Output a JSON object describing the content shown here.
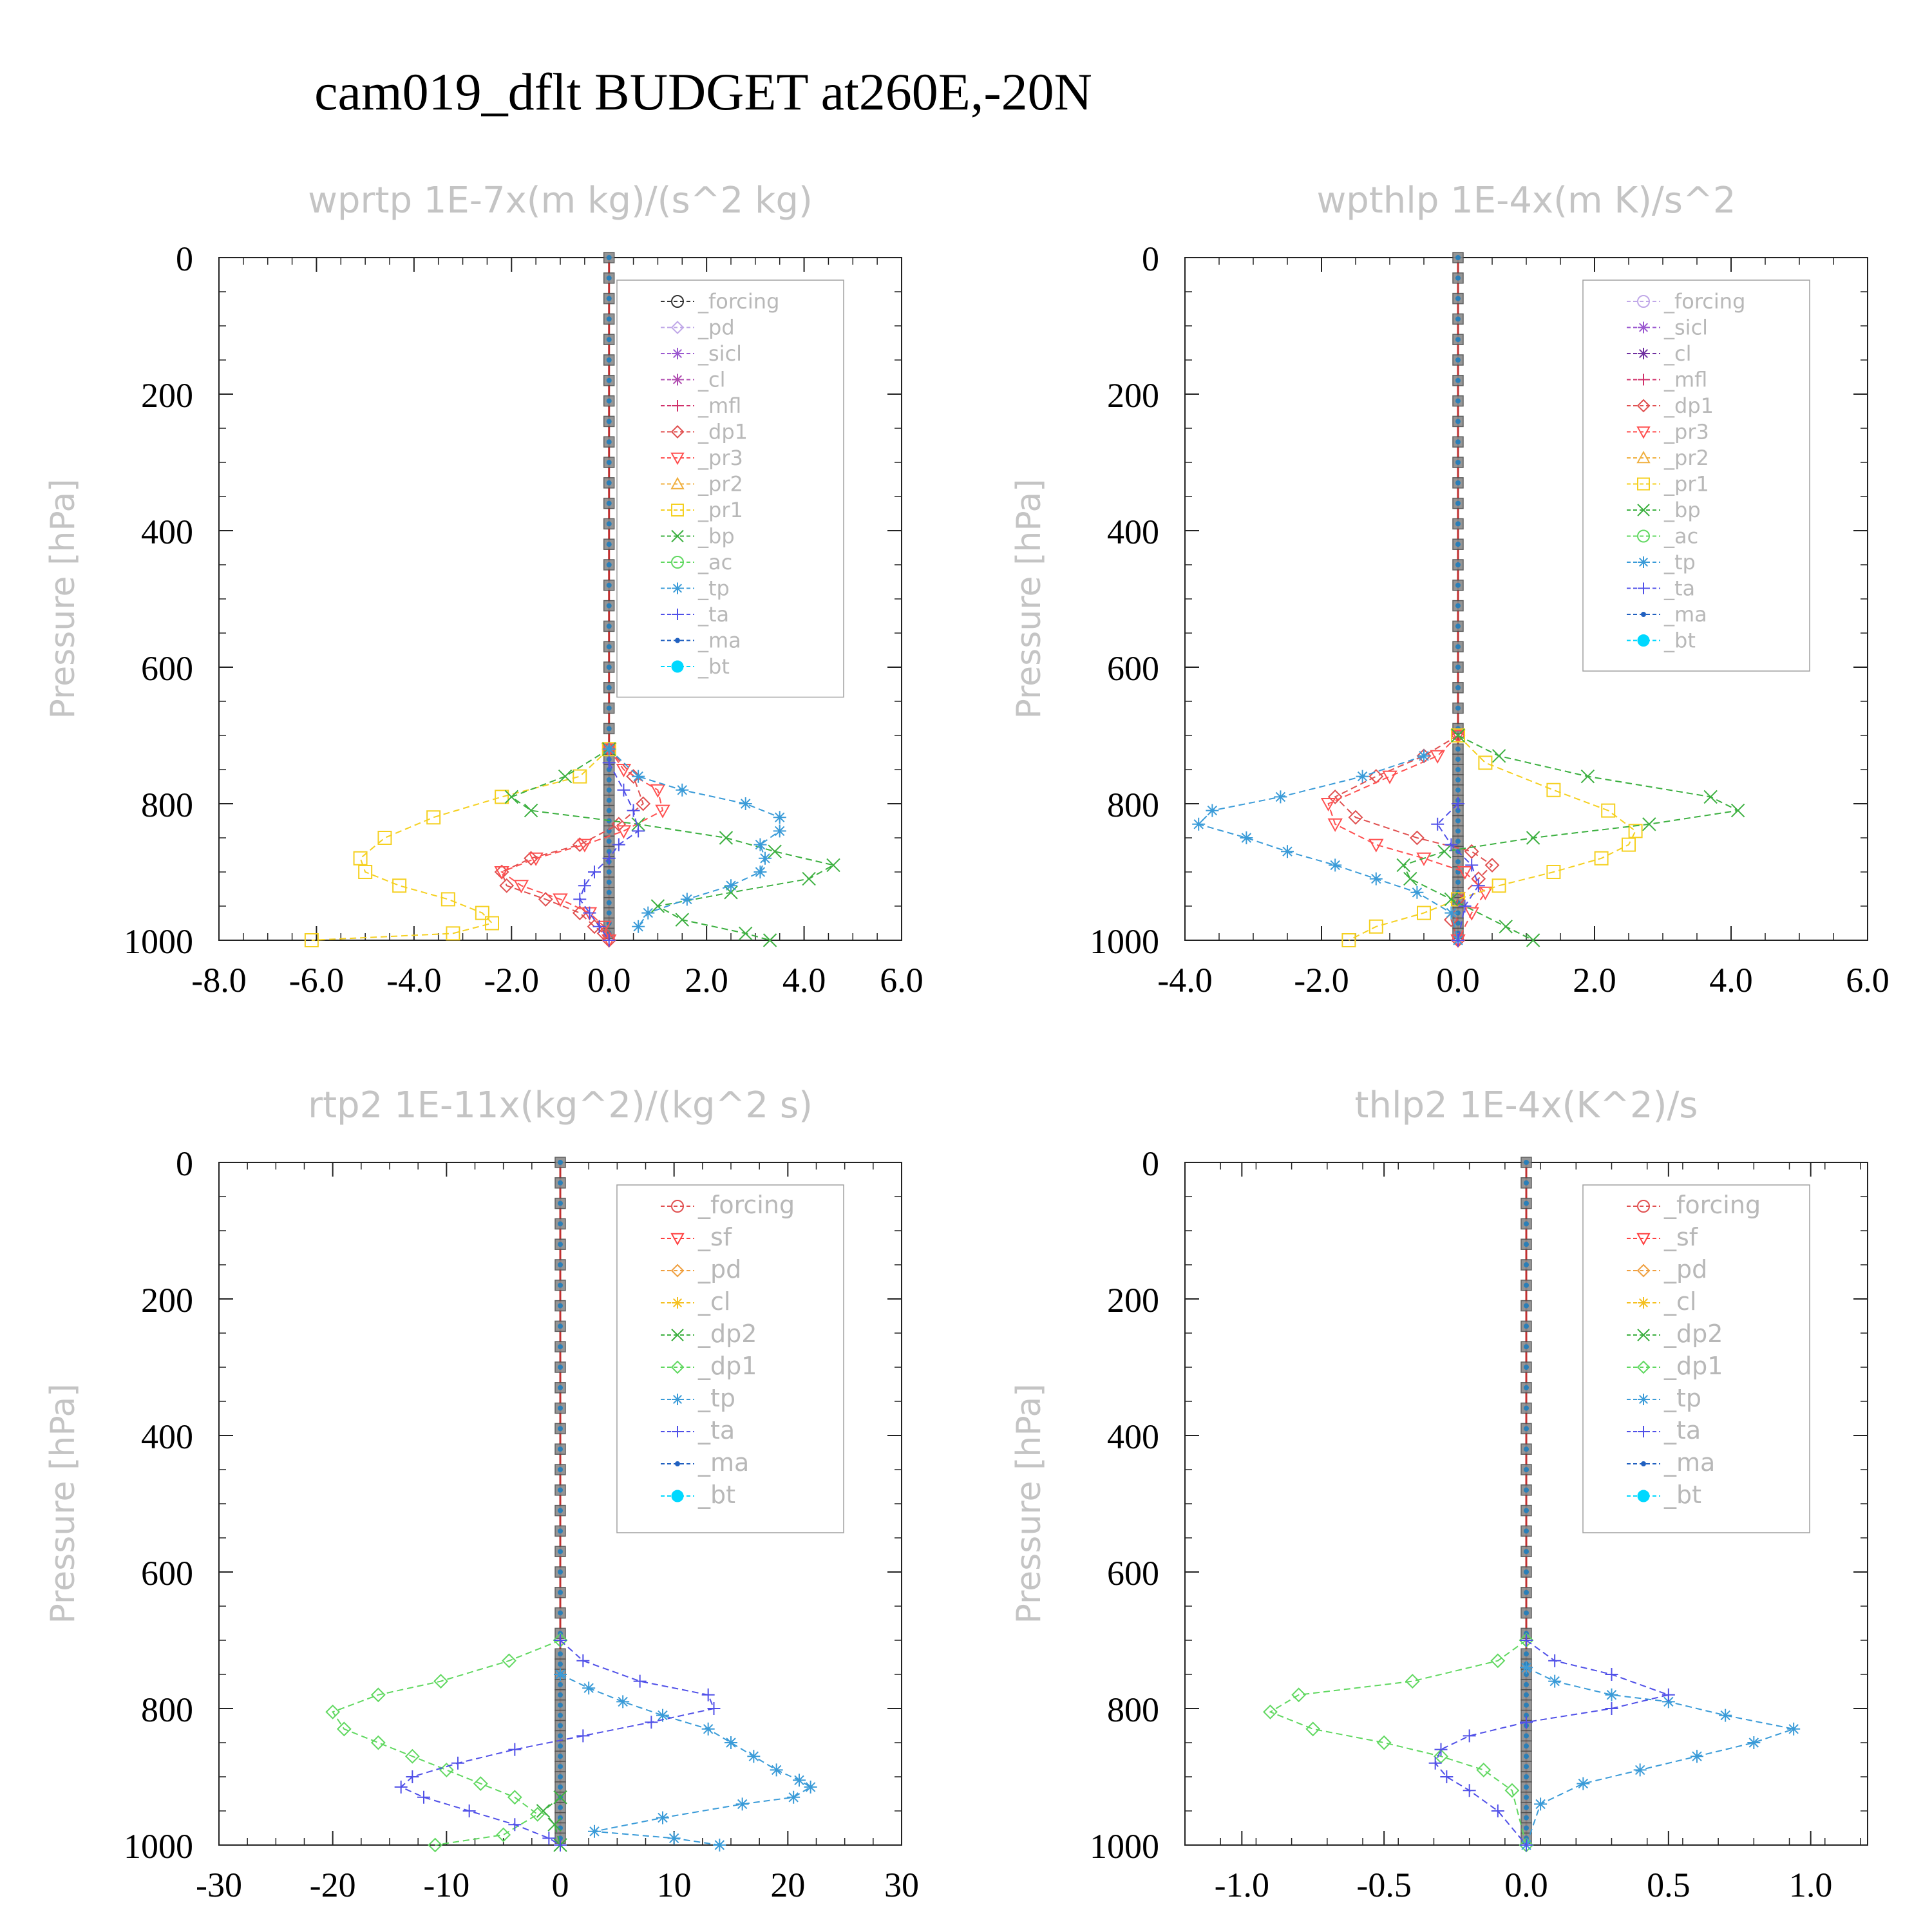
{
  "title": "cam019_dflt  BUDGET at260E,-20N",
  "chart_data": [
    {
      "type": "line",
      "title": "wprtp   1E-7x(m kg)/(s^2 kg)",
      "ylabel": "Pressure  [hPa]",
      "xlim": [
        -8,
        6
      ],
      "ylim": [
        1000,
        0
      ],
      "xticks": [
        "-8.0",
        "-6.0",
        "-4.0",
        "-2.0",
        "0.0",
        "2.0",
        "4.0",
        "6.0"
      ],
      "yticks": [
        "0",
        "200",
        "400",
        "600",
        "800",
        "1000"
      ],
      "legend": "upper-right",
      "series": [
        {
          "name": "_forcing",
          "color": "#333333",
          "values": []
        },
        {
          "name": "_pd",
          "color": "#c0a8e8",
          "values": []
        },
        {
          "name": "_sicl",
          "color": "#9b59d0",
          "values": []
        },
        {
          "name": "_cl",
          "color": "#b04cb0",
          "values": []
        },
        {
          "name": "_mfl",
          "color": "#d0306a",
          "values": []
        },
        {
          "name": "_dp1",
          "color": "#e05050",
          "x": [
            0,
            0.5,
            0.7,
            0.2,
            -0.6,
            -1.6,
            -2.2,
            -2.1,
            -1.3,
            -0.6,
            -0.3,
            -0.1,
            0
          ],
          "y": [
            720,
            760,
            800,
            830,
            860,
            880,
            900,
            920,
            940,
            960,
            980,
            990,
            1000
          ]
        },
        {
          "name": "_pr3",
          "color": "#ff5050",
          "x": [
            0,
            0.3,
            1.0,
            1.1,
            0.3,
            -0.5,
            -1.5,
            -2.2,
            -1.8,
            -1.0,
            -0.4,
            -0.1,
            0
          ],
          "y": [
            720,
            750,
            780,
            810,
            840,
            860,
            880,
            900,
            920,
            940,
            960,
            980,
            1000
          ]
        },
        {
          "name": "_pr2",
          "color": "#f0b040",
          "values": []
        },
        {
          "name": "_pr1",
          "color": "#f5d020",
          "x": [
            0,
            -0.6,
            -2.2,
            -3.6,
            -4.6,
            -5.1,
            -5.0,
            -4.3,
            -3.3,
            -2.6,
            -2.4,
            -3.2,
            -6.1
          ],
          "y": [
            720,
            760,
            790,
            820,
            850,
            880,
            900,
            920,
            940,
            960,
            975,
            990,
            1000
          ]
        },
        {
          "name": "_bp",
          "color": "#3cb040",
          "x": [
            0,
            -0.9,
            -2.0,
            -1.6,
            0.6,
            2.4,
            3.4,
            4.6,
            4.1,
            2.5,
            1.0,
            1.5,
            2.8,
            3.3
          ],
          "y": [
            720,
            760,
            790,
            810,
            830,
            850,
            870,
            890,
            910,
            930,
            950,
            970,
            990,
            1000
          ]
        },
        {
          "name": "_ac",
          "color": "#60d860",
          "values": []
        },
        {
          "name": "_tp",
          "color": "#3a9bd8",
          "x": [
            0,
            0.6,
            1.5,
            2.8,
            3.5,
            3.5,
            3.1,
            3.2,
            3.1,
            2.5,
            1.6,
            0.8,
            0.6
          ],
          "y": [
            720,
            760,
            780,
            800,
            820,
            840,
            860,
            880,
            900,
            920,
            940,
            960,
            980
          ]
        },
        {
          "name": "_ta",
          "color": "#5050e8",
          "x": [
            0,
            0.3,
            0.5,
            0.6,
            0.2,
            0,
            -0.3,
            -0.5,
            -0.6,
            -0.4,
            -0.2,
            0
          ],
          "y": [
            740,
            780,
            810,
            840,
            860,
            880,
            900,
            920,
            940,
            960,
            980,
            1000
          ]
        },
        {
          "name": "_ma",
          "color": "#2060c0",
          "values": []
        },
        {
          "name": "_bt",
          "color": "#00d8ff",
          "values": []
        }
      ]
    },
    {
      "type": "line",
      "title": "wpthlp   1E-4x(m K)/s^2",
      "ylabel": "Pressure  [hPa]",
      "xlim": [
        -4,
        6
      ],
      "ylim": [
        1000,
        0
      ],
      "xticks": [
        "-4.0",
        "-2.0",
        "0.0",
        "2.0",
        "4.0",
        "6.0"
      ],
      "yticks": [
        "0",
        "200",
        "400",
        "600",
        "800",
        "1000"
      ],
      "legend": "upper-right",
      "series": [
        {
          "name": "_forcing",
          "color": "#c0a8e8",
          "values": []
        },
        {
          "name": "_sicl",
          "color": "#9b59d0",
          "values": []
        },
        {
          "name": "_cl",
          "color": "#7030a0",
          "values": []
        },
        {
          "name": "_mfl",
          "color": "#d0306a",
          "values": []
        },
        {
          "name": "_dp1",
          "color": "#e05050",
          "x": [
            0,
            -0.5,
            -1.2,
            -1.8,
            -1.5,
            -0.6,
            0.2,
            0.5,
            0.3,
            0,
            -0.1,
            0
          ],
          "y": [
            700,
            730,
            760,
            790,
            820,
            850,
            870,
            890,
            910,
            940,
            970,
            1000
          ]
        },
        {
          "name": "_pr3",
          "color": "#ff5050",
          "x": [
            0,
            -0.3,
            -1.0,
            -1.9,
            -1.8,
            -1.2,
            -0.5,
            0.1,
            0.4,
            0.2,
            0
          ],
          "y": [
            700,
            730,
            760,
            800,
            830,
            860,
            880,
            900,
            930,
            960,
            1000
          ]
        },
        {
          "name": "_pr2",
          "color": "#f0b040",
          "values": []
        },
        {
          "name": "_pr1",
          "color": "#f5d020",
          "x": [
            0,
            0.4,
            1.4,
            2.2,
            2.6,
            2.5,
            2.1,
            1.4,
            0.6,
            0,
            -0.5,
            -1.2,
            -1.6
          ],
          "y": [
            700,
            740,
            780,
            810,
            840,
            860,
            880,
            900,
            920,
            940,
            960,
            980,
            1000
          ]
        },
        {
          "name": "_bp",
          "color": "#3cb040",
          "x": [
            0,
            0.6,
            1.9,
            3.7,
            4.1,
            2.8,
            1.1,
            -0.2,
            -0.8,
            -0.7,
            -0.1,
            0.7,
            1.1
          ],
          "y": [
            700,
            730,
            760,
            790,
            810,
            830,
            850,
            870,
            890,
            910,
            940,
            980,
            1000
          ]
        },
        {
          "name": "_ac",
          "color": "#60d860",
          "values": []
        },
        {
          "name": "_tp",
          "color": "#3a9bd8",
          "x": [
            -0.5,
            -1.4,
            -2.6,
            -3.6,
            -3.8,
            -3.1,
            -2.5,
            -1.8,
            -1.2,
            -0.6,
            -0.1,
            0
          ],
          "y": [
            730,
            760,
            790,
            810,
            830,
            850,
            870,
            890,
            910,
            930,
            960,
            1000
          ]
        },
        {
          "name": "_ta",
          "color": "#5050e8",
          "x": [
            0,
            -0.3,
            -0.1,
            0.2,
            0.3,
            0.1,
            0
          ],
          "y": [
            800,
            830,
            860,
            890,
            920,
            950,
            1000
          ]
        },
        {
          "name": "_ma",
          "color": "#2060c0",
          "values": []
        },
        {
          "name": "_bt",
          "color": "#00d8ff",
          "values": []
        }
      ]
    },
    {
      "type": "line",
      "title": "rtp2   1E-11x(kg^2)/(kg^2 s)",
      "ylabel": "Pressure  [hPa]",
      "xlim": [
        -30,
        30
      ],
      "ylim": [
        1000,
        0
      ],
      "xticks": [
        "-30",
        "-20",
        "-10",
        "0",
        "10",
        "20",
        "30"
      ],
      "yticks": [
        "0",
        "200",
        "400",
        "600",
        "800",
        "1000"
      ],
      "legend": "upper-right",
      "series": [
        {
          "name": "_forcing",
          "color": "#e05050",
          "values": []
        },
        {
          "name": "_sf",
          "color": "#ff4040",
          "values": []
        },
        {
          "name": "_pd",
          "color": "#f0a040",
          "values": []
        },
        {
          "name": "_cl",
          "color": "#f5c020",
          "values": []
        },
        {
          "name": "_dp2",
          "color": "#3cb040",
          "x": [
            0,
            -1.5,
            -0.5,
            0
          ],
          "y": [
            930,
            950,
            970,
            1000
          ]
        },
        {
          "name": "_dp1",
          "color": "#60d860",
          "x": [
            0,
            -4.5,
            -10.5,
            -16,
            -20,
            -19,
            -16,
            -13,
            -10,
            -7,
            -4,
            -2,
            -5,
            -11
          ],
          "y": [
            700,
            730,
            760,
            780,
            805,
            830,
            850,
            870,
            890,
            910,
            930,
            955,
            985,
            1000
          ]
        },
        {
          "name": "_tp",
          "color": "#3a9bd8",
          "x": [
            0,
            2.5,
            5.5,
            9,
            13,
            15,
            17,
            19,
            21,
            22,
            20.5,
            16,
            9,
            3,
            10,
            14
          ],
          "y": [
            750,
            770,
            790,
            810,
            830,
            850,
            870,
            890,
            905,
            915,
            930,
            940,
            960,
            980,
            990,
            1000
          ]
        },
        {
          "name": "_ta",
          "color": "#5050e8",
          "x": [
            0,
            2,
            7,
            13,
            13.5,
            8,
            2,
            -4,
            -9,
            -13,
            -14,
            -12,
            -8,
            -4,
            -1,
            0
          ],
          "y": [
            700,
            730,
            760,
            780,
            800,
            820,
            840,
            860,
            880,
            900,
            915,
            930,
            950,
            970,
            990,
            1000
          ]
        },
        {
          "name": "_ma",
          "color": "#2060c0",
          "values": []
        },
        {
          "name": "_bt",
          "color": "#00d8ff",
          "values": []
        }
      ]
    },
    {
      "type": "line",
      "title": "thlp2   1E-4x(K^2)/s",
      "ylabel": "Pressure  [hPa]",
      "xlim": [
        -1.2,
        1.2
      ],
      "ylim": [
        1000,
        0
      ],
      "xticks": [
        "-1.0",
        "-0.5",
        "0.0",
        "0.5",
        "1.0"
      ],
      "yticks": [
        "0",
        "200",
        "400",
        "600",
        "800",
        "1000"
      ],
      "legend": "upper-right",
      "series": [
        {
          "name": "_forcing",
          "color": "#e05050",
          "values": []
        },
        {
          "name": "_sf",
          "color": "#ff4040",
          "values": []
        },
        {
          "name": "_pd",
          "color": "#f0a040",
          "values": []
        },
        {
          "name": "_cl",
          "color": "#f5c020",
          "values": []
        },
        {
          "name": "_dp2",
          "color": "#3cb040",
          "values": []
        },
        {
          "name": "_dp1",
          "color": "#60d860",
          "x": [
            0,
            -0.1,
            -0.4,
            -0.8,
            -0.9,
            -0.75,
            -0.5,
            -0.3,
            -0.15,
            -0.05,
            0
          ],
          "y": [
            700,
            730,
            760,
            780,
            805,
            830,
            850,
            870,
            890,
            920,
            1000
          ]
        },
        {
          "name": "_tp",
          "color": "#3a9bd8",
          "x": [
            0,
            0.1,
            0.3,
            0.5,
            0.7,
            0.94,
            0.8,
            0.6,
            0.4,
            0.2,
            0.05,
            0
          ],
          "y": [
            740,
            760,
            780,
            790,
            810,
            830,
            850,
            870,
            890,
            910,
            940,
            1000
          ]
        },
        {
          "name": "_ta",
          "color": "#5050e8",
          "x": [
            0,
            0.1,
            0.3,
            0.5,
            0.3,
            0,
            -0.2,
            -0.3,
            -0.32,
            -0.28,
            -0.2,
            -0.1,
            0
          ],
          "y": [
            700,
            730,
            750,
            780,
            800,
            820,
            840,
            860,
            880,
            900,
            920,
            950,
            1000
          ]
        },
        {
          "name": "_ma",
          "color": "#2060c0",
          "values": []
        },
        {
          "name": "_bt",
          "color": "#00d8ff",
          "values": []
        }
      ]
    }
  ]
}
